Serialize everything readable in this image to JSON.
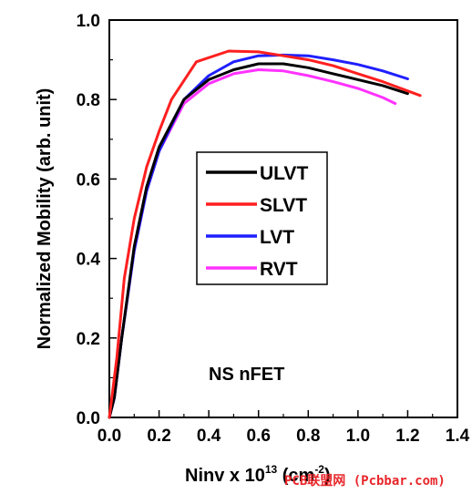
{
  "chart_data": {
    "type": "line",
    "title": "",
    "xlabel_base": "Ninv x 10",
    "xlabel_exp": "13",
    "xlabel_unit": " (cm",
    "xlabel_unit_exp": "-2",
    "xlabel_close": ")",
    "ylabel": "Normalized Mobility (arb. unit)",
    "xlim": [
      0.0,
      1.4
    ],
    "ylim": [
      0.0,
      1.0
    ],
    "xticks": [
      "0.0",
      "0.2",
      "0.4",
      "0.6",
      "0.8",
      "1.0",
      "1.2",
      "1.4"
    ],
    "yticks": [
      "0.0",
      "0.2",
      "0.4",
      "0.6",
      "0.8",
      "1.0"
    ],
    "legend_position": "center",
    "annotation": "NS nFET",
    "series": [
      {
        "name": "ULVT",
        "color": "#000000",
        "x": [
          0.0,
          0.02,
          0.05,
          0.1,
          0.15,
          0.2,
          0.3,
          0.4,
          0.5,
          0.6,
          0.7,
          0.8,
          0.9,
          1.0,
          1.1,
          1.2
        ],
        "y": [
          0.0,
          0.05,
          0.2,
          0.43,
          0.58,
          0.68,
          0.8,
          0.85,
          0.875,
          0.89,
          0.89,
          0.88,
          0.865,
          0.85,
          0.835,
          0.815
        ]
      },
      {
        "name": "SLVT",
        "color": "#ff1f1f",
        "x": [
          0.0,
          0.03,
          0.06,
          0.1,
          0.15,
          0.2,
          0.25,
          0.35,
          0.48,
          0.6,
          0.7,
          0.8,
          0.9,
          1.0,
          1.1,
          1.25
        ],
        "y": [
          0.0,
          0.15,
          0.35,
          0.5,
          0.63,
          0.72,
          0.8,
          0.895,
          0.922,
          0.92,
          0.91,
          0.9,
          0.885,
          0.865,
          0.845,
          0.81
        ]
      },
      {
        "name": "LVT",
        "color": "#1f1fff",
        "x": [
          0.0,
          0.02,
          0.05,
          0.1,
          0.15,
          0.2,
          0.3,
          0.4,
          0.5,
          0.6,
          0.7,
          0.8,
          0.9,
          1.0,
          1.1,
          1.2
        ],
        "y": [
          0.0,
          0.05,
          0.2,
          0.42,
          0.57,
          0.67,
          0.8,
          0.86,
          0.895,
          0.91,
          0.912,
          0.91,
          0.9,
          0.888,
          0.872,
          0.852
        ]
      },
      {
        "name": "RVT",
        "color": "#ff33ff",
        "x": [
          0.0,
          0.02,
          0.05,
          0.1,
          0.15,
          0.2,
          0.3,
          0.4,
          0.5,
          0.6,
          0.7,
          0.8,
          0.9,
          1.0,
          1.1,
          1.15
        ],
        "y": [
          0.0,
          0.05,
          0.2,
          0.42,
          0.57,
          0.67,
          0.79,
          0.84,
          0.865,
          0.875,
          0.872,
          0.86,
          0.845,
          0.828,
          0.805,
          0.79
        ]
      }
    ]
  },
  "watermark": "PCB联盟网 (Pcbbar.com)"
}
